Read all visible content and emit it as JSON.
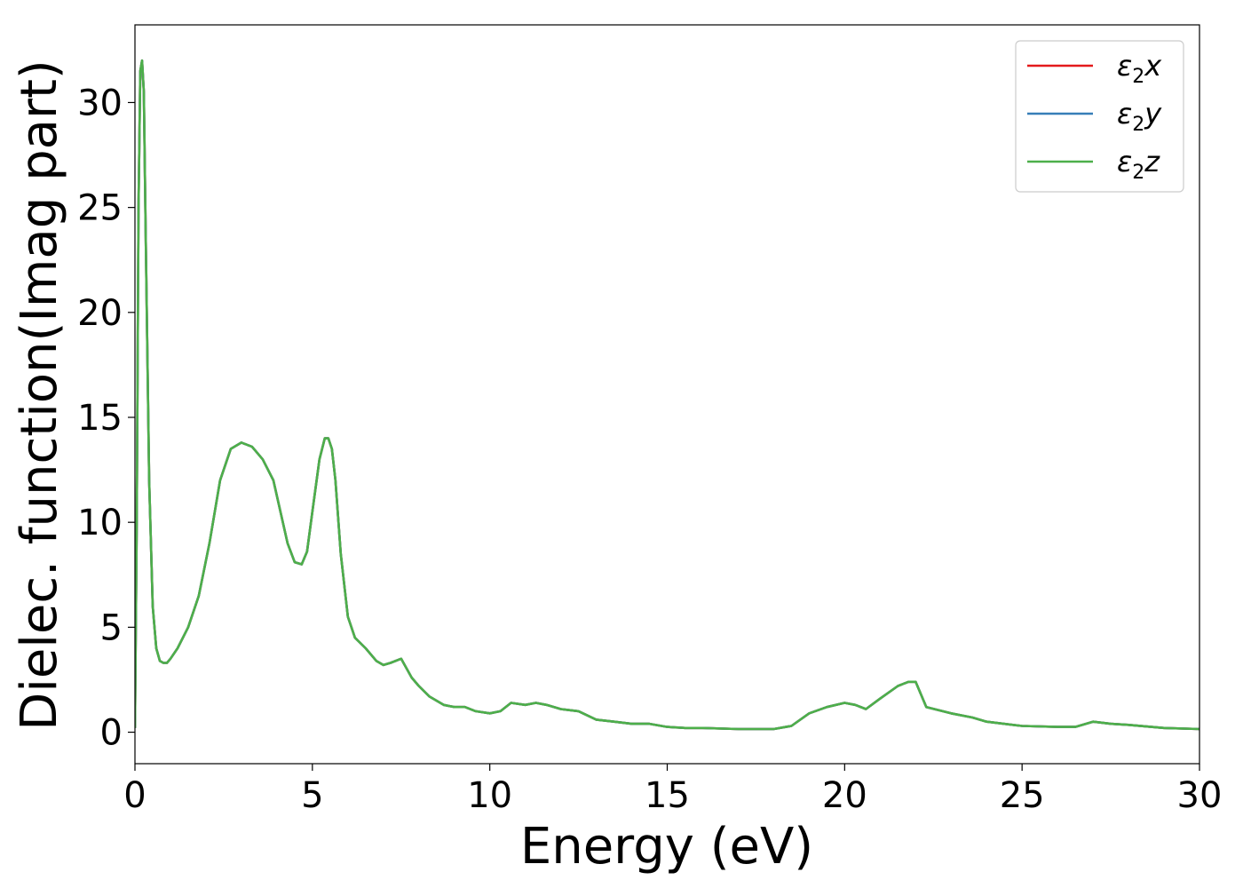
{
  "chart_data": {
    "type": "line",
    "title": "",
    "xlabel": "Energy (eV)",
    "ylabel": "Dielec. function(Imag part)",
    "xlim": [
      0,
      30
    ],
    "ylim": [
      -1.5,
      33.7
    ],
    "xticks": [
      0,
      5,
      10,
      15,
      20,
      25,
      30
    ],
    "yticks": [
      0,
      5,
      10,
      15,
      20,
      25,
      30
    ],
    "grid": false,
    "legend_position": "top-right",
    "series": [
      {
        "name": "ε₂x",
        "legend": {
          "sym": "ε",
          "sub": "2",
          "axis": "x"
        },
        "color": "#e41a1c",
        "x": [
          0,
          0.05,
          0.1,
          0.15,
          0.2,
          0.25,
          0.3,
          0.4,
          0.5,
          0.6,
          0.7,
          0.8,
          0.9,
          1.0,
          1.2,
          1.5,
          1.8,
          2.1,
          2.4,
          2.7,
          3.0,
          3.3,
          3.6,
          3.9,
          4.1,
          4.3,
          4.5,
          4.7,
          4.85,
          5.0,
          5.2,
          5.35,
          5.45,
          5.55,
          5.65,
          5.8,
          6.0,
          6.2,
          6.5,
          6.8,
          7.0,
          7.2,
          7.5,
          7.8,
          8.0,
          8.3,
          8.7,
          9.0,
          9.3,
          9.6,
          10.0,
          10.3,
          10.6,
          11.0,
          11.3,
          11.6,
          12.0,
          12.5,
          13.0,
          13.5,
          14.0,
          14.5,
          15.0,
          15.5,
          16.0,
          17.0,
          18.0,
          18.5,
          19.0,
          19.5,
          20.0,
          20.3,
          20.6,
          21.0,
          21.5,
          21.8,
          22.0,
          22.3,
          23.0,
          23.6,
          24.0,
          25.0,
          26.0,
          26.5,
          27.0,
          27.5,
          28.0,
          29.0,
          30.0
        ],
        "values": [
          0.2,
          10.0,
          25.0,
          31.5,
          32.0,
          30.5,
          24.0,
          12.0,
          6.0,
          4.0,
          3.4,
          3.3,
          3.3,
          3.5,
          4.0,
          5.0,
          6.5,
          9.0,
          12.0,
          13.5,
          13.8,
          13.6,
          13.0,
          12.0,
          10.5,
          9.0,
          8.1,
          8.0,
          8.6,
          10.5,
          13.0,
          14.0,
          14.0,
          13.5,
          12.0,
          8.5,
          5.5,
          4.5,
          4.0,
          3.4,
          3.2,
          3.3,
          3.5,
          2.6,
          2.2,
          1.7,
          1.3,
          1.2,
          1.2,
          1.0,
          0.9,
          1.0,
          1.4,
          1.3,
          1.4,
          1.3,
          1.1,
          1.0,
          0.6,
          0.5,
          0.4,
          0.4,
          0.25,
          0.2,
          0.2,
          0.15,
          0.15,
          0.3,
          0.9,
          1.2,
          1.4,
          1.3,
          1.1,
          1.6,
          2.2,
          2.4,
          2.4,
          1.2,
          0.9,
          0.7,
          0.5,
          0.3,
          0.25,
          0.25,
          0.5,
          0.4,
          0.35,
          0.2,
          0.15
        ]
      },
      {
        "name": "ε₂y",
        "legend": {
          "sym": "ε",
          "sub": "2",
          "axis": "y"
        },
        "color": "#377eb8",
        "x": [
          0,
          0.05,
          0.1,
          0.15,
          0.2,
          0.25,
          0.3,
          0.4,
          0.5,
          0.6,
          0.7,
          0.8,
          0.9,
          1.0,
          1.2,
          1.5,
          1.8,
          2.1,
          2.4,
          2.7,
          3.0,
          3.3,
          3.6,
          3.9,
          4.1,
          4.3,
          4.5,
          4.7,
          4.85,
          5.0,
          5.2,
          5.35,
          5.45,
          5.55,
          5.65,
          5.8,
          6.0,
          6.2,
          6.5,
          6.8,
          7.0,
          7.2,
          7.5,
          7.8,
          8.0,
          8.3,
          8.7,
          9.0,
          9.3,
          9.6,
          10.0,
          10.3,
          10.6,
          11.0,
          11.3,
          11.6,
          12.0,
          12.5,
          13.0,
          13.5,
          14.0,
          14.5,
          15.0,
          15.5,
          16.0,
          17.0,
          18.0,
          18.5,
          19.0,
          19.5,
          20.0,
          20.3,
          20.6,
          21.0,
          21.5,
          21.8,
          22.0,
          22.3,
          23.0,
          23.6,
          24.0,
          25.0,
          26.0,
          26.5,
          27.0,
          27.5,
          28.0,
          29.0,
          30.0
        ],
        "values": [
          0.2,
          10.0,
          25.0,
          31.5,
          32.0,
          30.5,
          24.0,
          12.0,
          6.0,
          4.0,
          3.4,
          3.3,
          3.3,
          3.5,
          4.0,
          5.0,
          6.5,
          9.0,
          12.0,
          13.5,
          13.8,
          13.6,
          13.0,
          12.0,
          10.5,
          9.0,
          8.1,
          8.0,
          8.6,
          10.5,
          13.0,
          14.0,
          14.0,
          13.5,
          12.0,
          8.5,
          5.5,
          4.5,
          4.0,
          3.4,
          3.2,
          3.3,
          3.5,
          2.6,
          2.2,
          1.7,
          1.3,
          1.2,
          1.2,
          1.0,
          0.9,
          1.0,
          1.4,
          1.3,
          1.4,
          1.3,
          1.1,
          1.0,
          0.6,
          0.5,
          0.4,
          0.4,
          0.25,
          0.2,
          0.2,
          0.15,
          0.15,
          0.3,
          0.9,
          1.2,
          1.4,
          1.3,
          1.1,
          1.6,
          2.2,
          2.4,
          2.4,
          1.2,
          0.9,
          0.7,
          0.5,
          0.3,
          0.25,
          0.25,
          0.5,
          0.4,
          0.35,
          0.2,
          0.15
        ]
      },
      {
        "name": "ε₂z",
        "legend": {
          "sym": "ε",
          "sub": "2",
          "axis": "z"
        },
        "color": "#4daf4a",
        "x": [
          0,
          0.05,
          0.1,
          0.15,
          0.2,
          0.25,
          0.3,
          0.4,
          0.5,
          0.6,
          0.7,
          0.8,
          0.9,
          1.0,
          1.2,
          1.5,
          1.8,
          2.1,
          2.4,
          2.7,
          3.0,
          3.3,
          3.6,
          3.9,
          4.1,
          4.3,
          4.5,
          4.7,
          4.85,
          5.0,
          5.2,
          5.35,
          5.45,
          5.55,
          5.65,
          5.8,
          6.0,
          6.2,
          6.5,
          6.8,
          7.0,
          7.2,
          7.5,
          7.8,
          8.0,
          8.3,
          8.7,
          9.0,
          9.3,
          9.6,
          10.0,
          10.3,
          10.6,
          11.0,
          11.3,
          11.6,
          12.0,
          12.5,
          13.0,
          13.5,
          14.0,
          14.5,
          15.0,
          15.5,
          16.0,
          17.0,
          18.0,
          18.5,
          19.0,
          19.5,
          20.0,
          20.3,
          20.6,
          21.0,
          21.5,
          21.8,
          22.0,
          22.3,
          23.0,
          23.6,
          24.0,
          25.0,
          26.0,
          26.5,
          27.0,
          27.5,
          28.0,
          29.0,
          30.0
        ],
        "values": [
          0.2,
          10.0,
          25.0,
          31.5,
          32.0,
          30.5,
          24.0,
          12.0,
          6.0,
          4.0,
          3.4,
          3.3,
          3.3,
          3.5,
          4.0,
          5.0,
          6.5,
          9.0,
          12.0,
          13.5,
          13.8,
          13.6,
          13.0,
          12.0,
          10.5,
          9.0,
          8.1,
          8.0,
          8.6,
          10.5,
          13.0,
          14.0,
          14.0,
          13.5,
          12.0,
          8.5,
          5.5,
          4.5,
          4.0,
          3.4,
          3.2,
          3.3,
          3.5,
          2.6,
          2.2,
          1.7,
          1.3,
          1.2,
          1.2,
          1.0,
          0.9,
          1.0,
          1.4,
          1.3,
          1.4,
          1.3,
          1.1,
          1.0,
          0.6,
          0.5,
          0.4,
          0.4,
          0.25,
          0.2,
          0.2,
          0.15,
          0.15,
          0.3,
          0.9,
          1.2,
          1.4,
          1.3,
          1.1,
          1.6,
          2.2,
          2.4,
          2.4,
          1.2,
          0.9,
          0.7,
          0.5,
          0.3,
          0.25,
          0.25,
          0.5,
          0.4,
          0.35,
          0.2,
          0.15
        ]
      }
    ]
  }
}
